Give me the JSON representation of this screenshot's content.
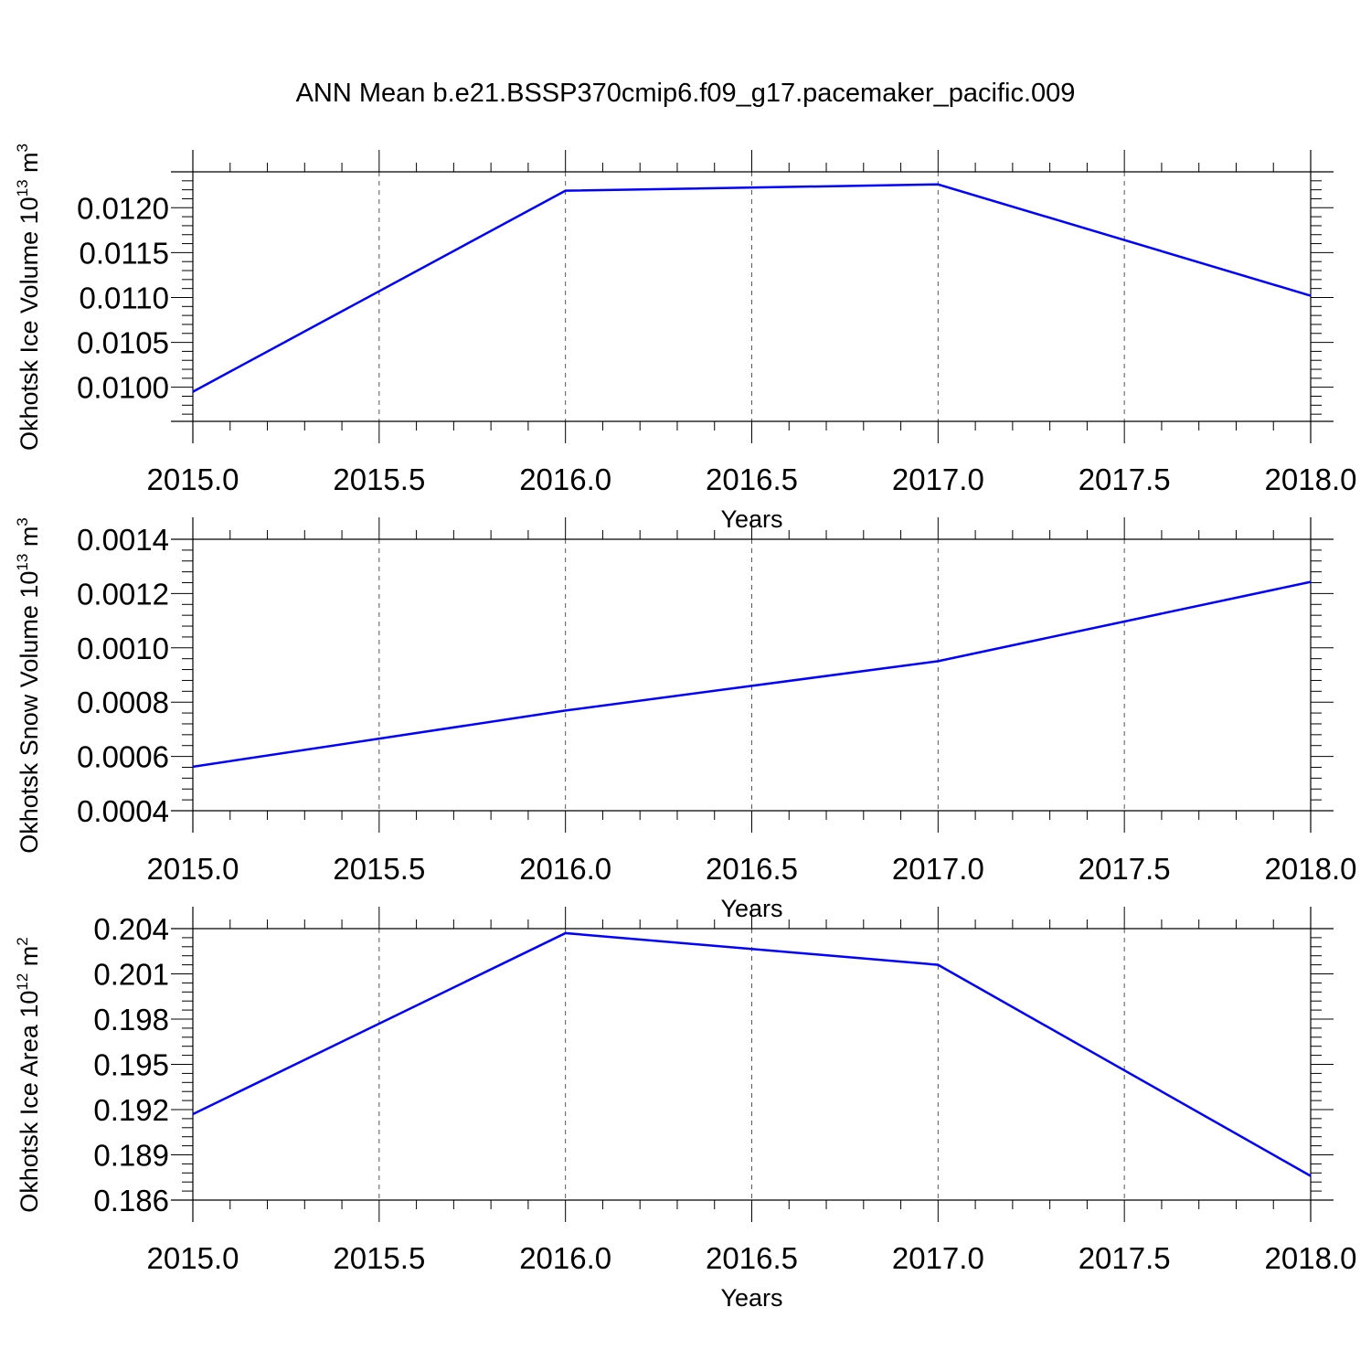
{
  "title": "ANN Mean b.e21.BSSP370cmip6.f09_g17.pacemaker_pacific.009",
  "colors": {
    "line": "#0000ff",
    "axes": "#000000",
    "grid": "#555555"
  },
  "chart_data": [
    {
      "type": "line",
      "xlabel": "Years",
      "ylabel": "Okhotsk Ice Volume 10",
      "ylabel_sup": "13",
      "ylabel_unit": "m",
      "ylabel_unit_sup": "3",
      "x": [
        2015,
        2016,
        2017,
        2018
      ],
      "series": [
        {
          "values": [
            0.00995,
            0.01219,
            0.01226,
            0.01102
          ]
        }
      ],
      "xlim": [
        2015.0,
        2018.0
      ],
      "ylim": [
        0.00962,
        0.0124
      ],
      "xticks": [
        "2015.0",
        "2015.5",
        "2016.0",
        "2016.5",
        "2017.0",
        "2017.5",
        "2018.0"
      ],
      "yticks": [
        "0.0100",
        "0.0105",
        "0.0110",
        "0.0115",
        "0.0120"
      ],
      "grid": "vertical dashed"
    },
    {
      "type": "line",
      "xlabel": "Years",
      "ylabel": "Okhotsk Snow Volume 10",
      "ylabel_sup": "13",
      "ylabel_unit": "m",
      "ylabel_unit_sup": "3",
      "x": [
        2015,
        2016,
        2017,
        2018
      ],
      "series": [
        {
          "values": [
            0.000562,
            0.000769,
            0.000951,
            0.001243
          ]
        }
      ],
      "xlim": [
        2015.0,
        2018.0
      ],
      "ylim": [
        0.0004,
        0.0014
      ],
      "xticks": [
        "2015.0",
        "2015.5",
        "2016.0",
        "2016.5",
        "2017.0",
        "2017.5",
        "2018.0"
      ],
      "yticks": [
        "0.0004",
        "0.0006",
        "0.0008",
        "0.0010",
        "0.0012",
        "0.0014"
      ],
      "grid": "vertical dashed"
    },
    {
      "type": "line",
      "xlabel": "Years",
      "ylabel": "Okhotsk Ice Area 10",
      "ylabel_sup": "12",
      "ylabel_unit": "m",
      "ylabel_unit_sup": "2",
      "x": [
        2015,
        2016,
        2017,
        2018
      ],
      "series": [
        {
          "values": [
            0.1917,
            0.2037,
            0.2016,
            0.1876
          ]
        }
      ],
      "xlim": [
        2015.0,
        2018.0
      ],
      "ylim": [
        0.186,
        0.204
      ],
      "xticks": [
        "2015.0",
        "2015.5",
        "2016.0",
        "2016.5",
        "2017.0",
        "2017.5",
        "2018.0"
      ],
      "yticks": [
        "0.186",
        "0.189",
        "0.192",
        "0.195",
        "0.198",
        "0.201",
        "0.204"
      ],
      "grid": "vertical dashed"
    }
  ]
}
